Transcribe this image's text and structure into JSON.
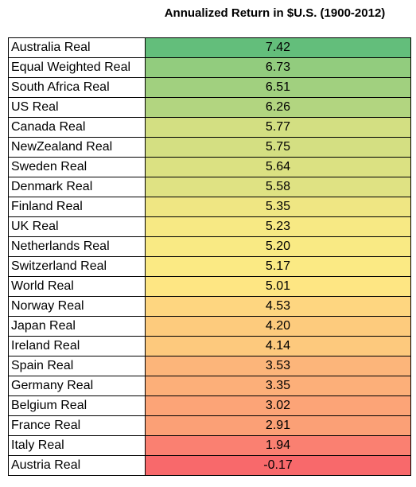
{
  "chart_data": {
    "type": "table",
    "title": "Annualized Return in $U.S. (1900-2012)",
    "rows": [
      {
        "label": "Australia Real",
        "value": "7.42",
        "color": "#63BE7B"
      },
      {
        "label": "Equal Weighted Real",
        "value": "6.73",
        "color": "#92CC7E"
      },
      {
        "label": "South Africa Real",
        "value": "6.51",
        "color": "#A1D07F"
      },
      {
        "label": "US Real",
        "value": "6.26",
        "color": "#B2D580"
      },
      {
        "label": "Canada Real",
        "value": "5.77",
        "color": "#D3DF82"
      },
      {
        "label": "NewZealand Real",
        "value": "5.75",
        "color": "#D4DF82"
      },
      {
        "label": "Sweden Real",
        "value": "5.64",
        "color": "#DBE182"
      },
      {
        "label": "Denmark Real",
        "value": "5.58",
        "color": "#DFE283"
      },
      {
        "label": "Finland Real",
        "value": "5.35",
        "color": "#EFE683"
      },
      {
        "label": "UK Real",
        "value": "5.23",
        "color": "#F7E984"
      },
      {
        "label": "Netherlands Real",
        "value": "5.20",
        "color": "#F9EA84"
      },
      {
        "label": "Switzerland Real",
        "value": "5.17",
        "color": "#FBEA84"
      },
      {
        "label": "World Real",
        "value": "5.01",
        "color": "#FEE683"
      },
      {
        "label": "Norway Real",
        "value": "4.53",
        "color": "#FED680"
      },
      {
        "label": "Japan Real",
        "value": "4.20",
        "color": "#FDCB7D"
      },
      {
        "label": "Ireland Real",
        "value": "4.14",
        "color": "#FDC97D"
      },
      {
        "label": "Spain Real",
        "value": "3.53",
        "color": "#FCB57A"
      },
      {
        "label": "Germany Real",
        "value": "3.35",
        "color": "#FCAF79"
      },
      {
        "label": "Belgium Real",
        "value": "3.02",
        "color": "#FCA477"
      },
      {
        "label": "France Real",
        "value": "2.91",
        "color": "#FBA076"
      },
      {
        "label": "Italy Real",
        "value": "1.94",
        "color": "#FA8071"
      },
      {
        "label": "Austria Real",
        "value": "-0.17",
        "color": "#F8696B"
      }
    ]
  }
}
